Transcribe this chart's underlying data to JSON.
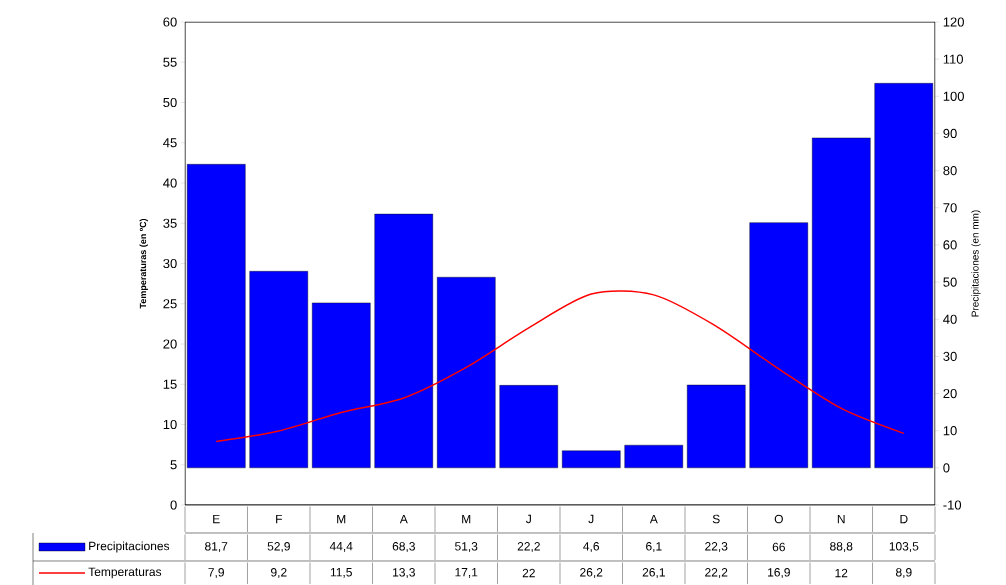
{
  "chart_data": {
    "type": "bar",
    "ylabel": "Temperaturas (en ºC)",
    "y2label": "Precipitaciones (en mm)",
    "categories": [
      "E",
      "F",
      "M",
      "A",
      "M",
      "J",
      "J",
      "A",
      "S",
      "O",
      "N",
      "D"
    ],
    "series": [
      {
        "name": "Precipitaciones",
        "axis": "y2",
        "color": "#0000ff",
        "values": [
          81.7,
          52.9,
          44.4,
          68.3,
          51.3,
          22.2,
          4.6,
          6.1,
          22.3,
          66,
          88.8,
          103.5
        ],
        "value_labels": [
          "81,7",
          "52,9",
          "44,4",
          "68,3",
          "51,3",
          "22,2",
          "4,6",
          "6,1",
          "22,3",
          "66",
          "88,8",
          "103,5"
        ]
      },
      {
        "name": "Temperaturas",
        "type": "line",
        "color": "#ff0000",
        "values": [
          7.9,
          9.2,
          11.5,
          13.3,
          17.1,
          22,
          26.2,
          26.1,
          22.2,
          16.9,
          12,
          8.9
        ],
        "value_labels": [
          "7,9",
          "9,2",
          "11,5",
          "13,3",
          "17,1",
          "22",
          "26,2",
          "26,1",
          "22,2",
          "16,9",
          "12",
          "8,9"
        ]
      }
    ],
    "ylim": [
      0,
      60
    ],
    "yticks": [
      0,
      5,
      10,
      15,
      20,
      25,
      30,
      35,
      40,
      45,
      50,
      55,
      60
    ],
    "y2lim": [
      -10,
      120
    ],
    "y2ticks": [
      -10,
      0,
      10,
      20,
      30,
      40,
      50,
      60,
      70,
      80,
      90,
      100,
      110,
      120
    ],
    "legend": "bottom",
    "grid": false,
    "marker": "none",
    "line_style": "solid"
  }
}
